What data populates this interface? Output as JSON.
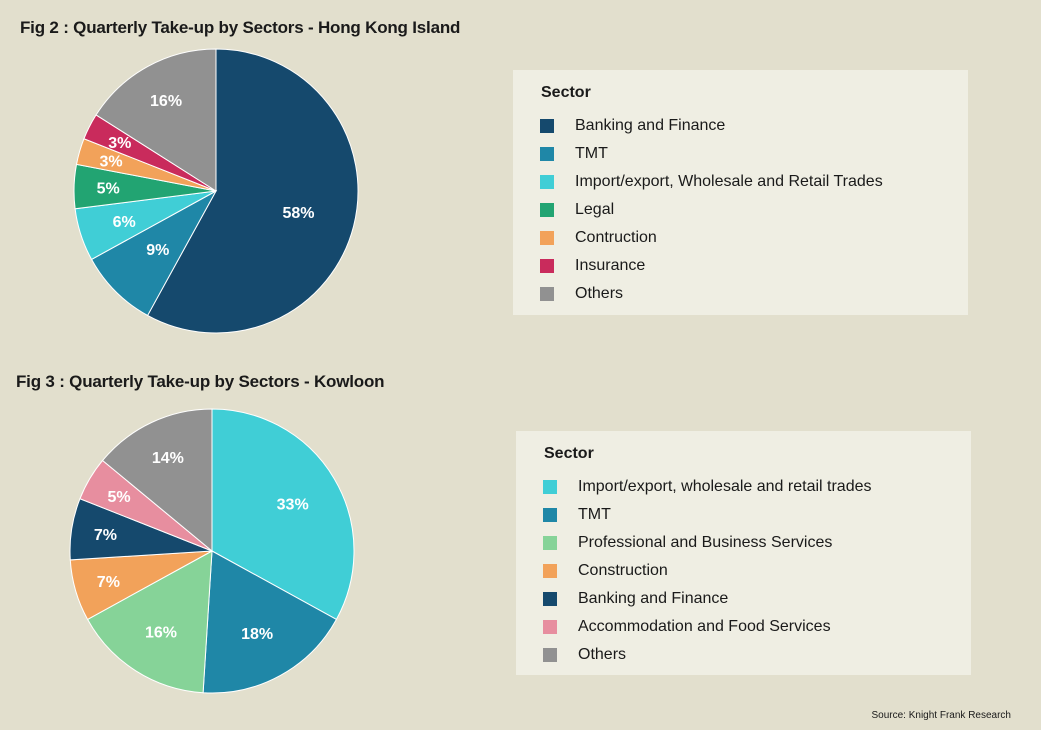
{
  "chart_data": [
    {
      "type": "pie",
      "title": "Fig 2 : Quarterly Take-up by Sectors  - Hong Kong Island",
      "legend_title": "Sector",
      "labels": [
        "Banking and Finance",
        "TMT",
        "Import/export, Wholesale and Retail Trades",
        "Legal",
        "Contruction",
        "Insurance",
        "Others"
      ],
      "values": [
        58,
        9,
        6,
        5,
        3,
        3,
        16
      ],
      "value_labels": [
        "58%",
        "9%",
        "6%",
        "5%",
        "3%",
        "3%",
        "16%"
      ],
      "colors": [
        "#15496d",
        "#1f87a7",
        "#40ced6",
        "#22a472",
        "#f2a25a",
        "#c92b5c",
        "#919191"
      ]
    },
    {
      "type": "pie",
      "title": "Fig 3 : Quarterly Take-up by Sectors  - Kowloon",
      "legend_title": "Sector",
      "labels": [
        "Import/export, wholesale and retail trades",
        "TMT",
        "Professional and Business Services",
        "Construction",
        "Banking and Finance",
        "Accommodation and Food Services",
        "Others"
      ],
      "values": [
        33,
        18,
        16,
        7,
        7,
        5,
        14
      ],
      "value_labels": [
        "33%",
        "18%",
        "16%",
        "7%",
        "7%",
        "5%",
        "14%"
      ],
      "colors": [
        "#40ced6",
        "#1f87a7",
        "#86d398",
        "#f2a25a",
        "#15496d",
        "#e78e9f",
        "#919191"
      ]
    }
  ],
  "source": "Source: Knight Frank Research"
}
